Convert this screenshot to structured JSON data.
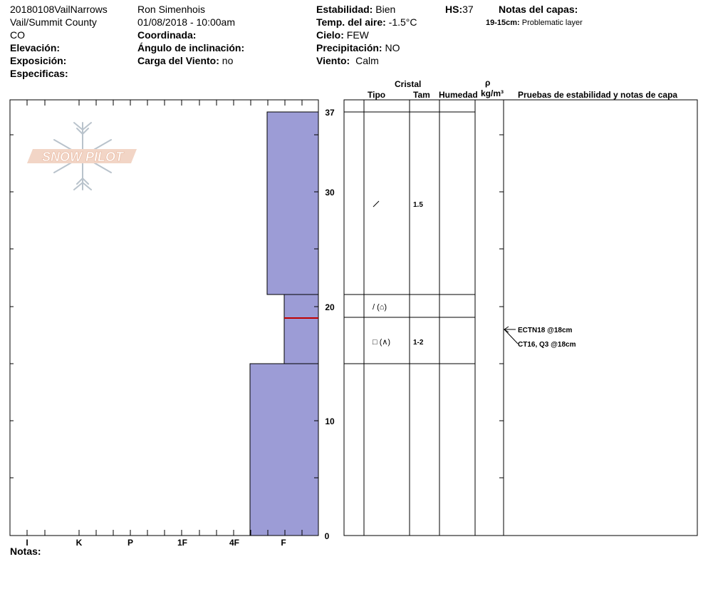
{
  "header": {
    "col1": [
      "20180108VailNarrows",
      "Vail/Summit County",
      "CO"
    ],
    "elevation_label": "Elevación:",
    "aspect_label": "Exposición:",
    "specifics_label": "Especificas:",
    "observer": "Ron Simenhois",
    "datetime": "01/08/2018 - 10:00am",
    "coord_label": "Coordinada:",
    "slope_label": "Ángulo de inclinación:",
    "wind_load_label": "Carga del Viento:",
    "wind_load_value": "no",
    "stability_label": "Estabilidad:",
    "stability_value": "Bien",
    "air_temp_label": "Temp. del aire:",
    "air_temp_value": "-1.5°C",
    "sky_label": "Cielo:",
    "sky_value": "FEW",
    "precip_label": "Precipitación:",
    "precip_value": "NO",
    "wind_label": "Viento:",
    "wind_value": "Calm",
    "hs_label": "HS:",
    "hs_value": "37",
    "layer_notes_title": "Notas del capas:",
    "layer_note_range": "19-15cm:",
    "layer_note_text": "Problematic layer"
  },
  "logo": {
    "text": "SNOW PILOT"
  },
  "hardness_axis": [
    "I",
    "K",
    "P",
    "1F",
    "4F",
    "F"
  ],
  "depth_axis": [
    "37",
    "30",
    "20",
    "10",
    "0"
  ],
  "notes_label": "Notas:",
  "table_headers": {
    "crystal": "Cristal",
    "rho": "ρ",
    "type": "Tipo",
    "size": "Tam",
    "humidity": "Humedad",
    "density": "kg/m³",
    "tests": "Pruebas de estabilidad y notas de capa"
  },
  "layers": [
    {
      "top_cm": 37,
      "bottom_cm": 21,
      "hardness": "F",
      "grain_form": "/",
      "size": "1.5"
    },
    {
      "top_cm": 21,
      "bottom_cm": 19,
      "hardness": "F",
      "grain_form": "/ (⌂)",
      "size": ""
    },
    {
      "top_cm": 19,
      "bottom_cm": 15,
      "hardness": "F",
      "grain_form": "□ (∧)",
      "size": "1-2"
    },
    {
      "top_cm": 15,
      "bottom_cm": 0,
      "hardness": "4F-F",
      "grain_form": "",
      "size": ""
    }
  ],
  "stability_tests": [
    {
      "depth_cm": 18,
      "text": "ECTN18 @18cm"
    },
    {
      "depth_cm": 18,
      "text": "CT16, Q3 @18cm"
    }
  ],
  "colors": {
    "profile_fill": "#9c9cd6",
    "weak_layer_line": "#c00000"
  }
}
